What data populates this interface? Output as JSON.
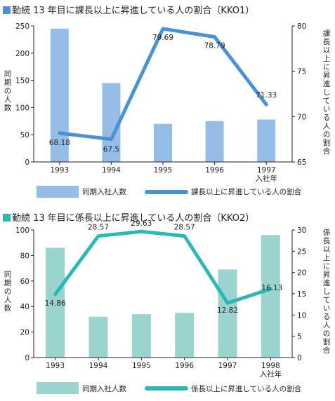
{
  "colors": {
    "bar1": "#96bde5",
    "line1": "#4a92d4",
    "bar2": "#9bd4cf",
    "line2": "#2db8b6",
    "sq1": "#4a92d4",
    "sq2": "#2db8b6"
  },
  "chart1": {
    "title": "勤続 13 年目に課長以上に昇進している人の割合（KKO1）",
    "y_left_label": "同期の人数",
    "y_right_label": "課長以上に昇進している人の割合",
    "legend_bar": "同期入社人数",
    "legend_line": "課長以上に昇進している人の割合",
    "x_ticks": [
      "1993",
      "1994",
      "1995",
      "1996",
      "1997\n入社年"
    ],
    "y_left_ticks": [
      "0",
      "50",
      "100",
      "150",
      "200",
      "250"
    ],
    "y_right_ticks": [
      "65",
      "70",
      "75",
      "80"
    ]
  },
  "chart2": {
    "title": "勤続 13 年目に係長以上に昇進している人の割合（KKO2）",
    "y_left_label": "同期の人数",
    "y_right_label": "係長以上に昇進している人の割合",
    "legend_bar": "同期入社人数",
    "legend_line": "係長以上に昇進している人の割合",
    "x_ticks": [
      "1993",
      "1994",
      "1995",
      "1996",
      "1997",
      "1998\n入社年"
    ],
    "y_left_ticks": [
      "0",
      "20",
      "40",
      "60",
      "80",
      "100"
    ],
    "y_right_ticks": [
      "0",
      "5",
      "10",
      "15",
      "20",
      "25",
      "30"
    ]
  },
  "chart_data": [
    {
      "type": "bar",
      "title": "勤続 13 年目に課長以上に昇進している人の割合（KKO1）",
      "categories": [
        "1993",
        "1994",
        "1995",
        "1996",
        "1997"
      ],
      "xlabel": "入社年",
      "ylabel": "同期の人数",
      "ylim": [
        0,
        250
      ],
      "y2label": "課長以上に昇進している人の割合",
      "y2lim": [
        65,
        80
      ],
      "series": [
        {
          "name": "同期入社人数",
          "type": "bar",
          "axis": "left",
          "values": [
            245,
            145,
            70,
            75,
            78
          ]
        },
        {
          "name": "課長以上に昇進している人の割合",
          "type": "line",
          "axis": "right",
          "values": [
            68.18,
            67.5,
            79.69,
            78.79,
            71.33
          ],
          "labels": [
            "68.18",
            "67.5",
            "79.69",
            "78.79",
            "71.33"
          ]
        }
      ]
    },
    {
      "type": "bar",
      "title": "勤続 13 年目に係長以上に昇進している人の割合（KKO2）",
      "categories": [
        "1993",
        "1994",
        "1995",
        "1996",
        "1997",
        "1998"
      ],
      "xlabel": "入社年",
      "ylabel": "同期の人数",
      "ylim": [
        0,
        100
      ],
      "y2label": "係長以上に昇進している人の割合",
      "y2lim": [
        0,
        30
      ],
      "series": [
        {
          "name": "同期入社人数",
          "type": "bar",
          "axis": "left",
          "values": [
            86,
            32,
            34,
            35,
            69,
            96
          ]
        },
        {
          "name": "係長以上に昇進している人の割合",
          "type": "line",
          "axis": "right",
          "values": [
            14.86,
            28.57,
            29.63,
            28.57,
            12.82,
            16.13
          ],
          "labels": [
            "14.86",
            "28.57",
            "29.63",
            "28.57",
            "12.82",
            "16.13"
          ]
        }
      ]
    }
  ]
}
